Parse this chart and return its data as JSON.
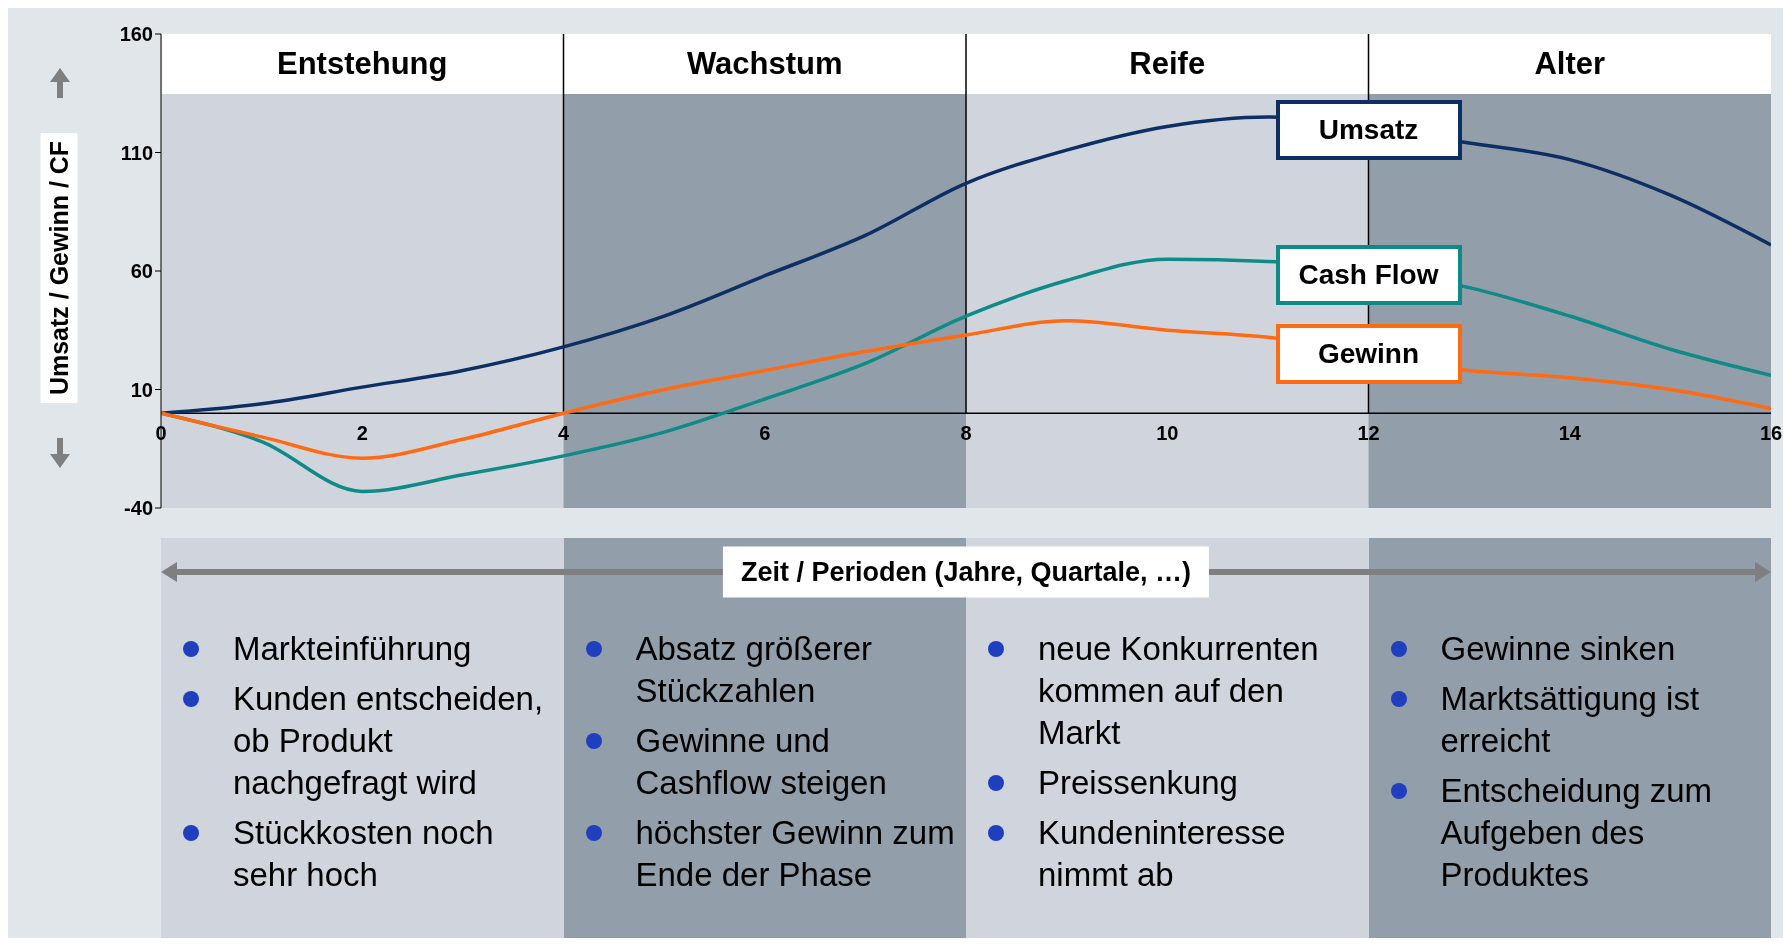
{
  "chart_data": {
    "type": "line",
    "xlabel": "Zeit / Perioden (Jahre, Quartale, …)",
    "ylabel": "Umsatz / Gewinn / CF",
    "x": [
      0,
      1,
      2,
      3,
      4,
      5,
      6,
      7,
      8,
      9,
      10,
      11,
      12,
      13,
      14,
      15,
      16
    ],
    "series": [
      {
        "name": "Umsatz",
        "color": "#0d2f63",
        "values": [
          0,
          4,
          11,
          18,
          28,
          41,
          58,
          75,
          97,
          111,
          121,
          125,
          null,
          114,
          107,
          92,
          71
        ]
      },
      {
        "name": "Cash Flow",
        "color": "#0e8b86",
        "values": [
          0,
          -12,
          -33,
          -26,
          -18,
          -8,
          6,
          21,
          41,
          56,
          65,
          64,
          null,
          53,
          41,
          27,
          16
        ]
      },
      {
        "name": "Gewinn",
        "color": "#ff6a13",
        "values": [
          0,
          -10,
          -19,
          -11,
          0,
          10,
          18,
          26,
          33,
          39,
          35,
          32,
          null,
          18,
          15,
          10,
          2
        ]
      }
    ],
    "xlim": [
      0,
      16
    ],
    "xticks": [
      0,
      2,
      4,
      6,
      8,
      10,
      12,
      14,
      16
    ],
    "ylim": [
      -40,
      160
    ],
    "yticks": [
      -40,
      10,
      60,
      110,
      160
    ],
    "bands": [
      {
        "axis": "x",
        "from": 0,
        "to": 4,
        "label": "Entstehung",
        "color": "#d0d5dd"
      },
      {
        "axis": "x",
        "from": 4,
        "to": 8,
        "label": "Wachstum",
        "color": "#939eab"
      },
      {
        "axis": "x",
        "from": 8,
        "to": 12,
        "label": "Reife",
        "color": "#d0d5dd"
      },
      {
        "axis": "x",
        "from": 12,
        "to": 16,
        "label": "Alter",
        "color": "#939eab"
      }
    ],
    "ref_lines": [
      {
        "axis": "x",
        "value": 4,
        "color": "#000000"
      },
      {
        "axis": "x",
        "value": 8,
        "color": "#000000"
      },
      {
        "axis": "x",
        "value": 12,
        "color": "#000000"
      }
    ],
    "annotations": [
      "Markteinführung",
      "Kunden entscheiden, ob Produkt nachgefragt wird",
      "Stückkosten noch sehr hoch",
      "Absatz größerer Stückzahlen",
      "Gewinne und Cashflow steigen",
      "höchster Gewinn zum Ende der Phase",
      "neue Konkurrenten kommen auf den Markt",
      "Preissenkung",
      "Kundeninteresse nimmt ab",
      "Gewinne sinken",
      "Marktsättigung ist erreicht",
      "Entscheidung zum Aufgeben des Produktes"
    ]
  }
}
